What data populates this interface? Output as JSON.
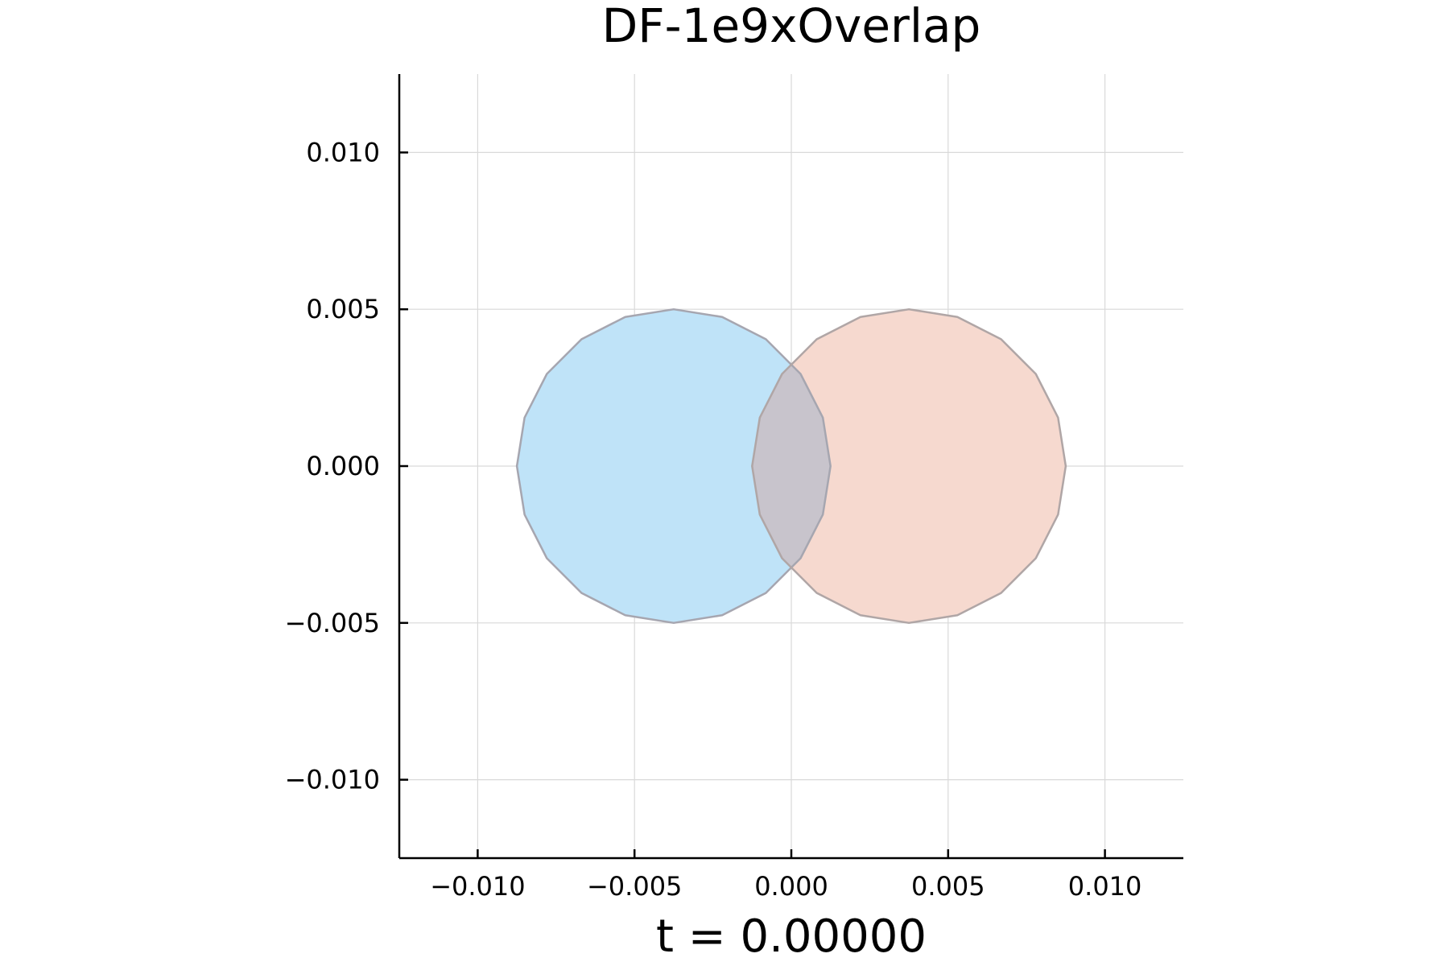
{
  "chart_data": {
    "type": "area",
    "title": "DF-1e9xOverlap",
    "xlabel": "t = 0.00000",
    "ylabel": "",
    "xlim": [
      -0.0125,
      0.0125
    ],
    "ylim": [
      -0.0125,
      0.0125
    ],
    "xticks": [
      "−0.010",
      "−0.005",
      "0.000",
      "0.005",
      "0.010"
    ],
    "yticks": [
      "0.010",
      "0.005",
      "0.000",
      "−0.005",
      "−0.010"
    ],
    "xtick_values": [
      -0.01,
      -0.005,
      0.0,
      0.005,
      0.01
    ],
    "ytick_values": [
      0.01,
      0.005,
      0.0,
      -0.005,
      -0.01
    ],
    "grid": true,
    "aspect": "equal",
    "series": [
      {
        "shape": "polygon",
        "center": [
          -0.00375,
          0.0
        ],
        "radius": 0.005,
        "sides": 20,
        "fill": "#bfe3f8",
        "stroke": "#a6a6b0"
      },
      {
        "shape": "polygon",
        "center": [
          0.00375,
          0.0
        ],
        "radius": 0.005,
        "sides": 20,
        "fill": "#f6d9cf",
        "stroke": "#b0a6a6"
      }
    ],
    "overlap_fill": "#c8c4cc"
  }
}
